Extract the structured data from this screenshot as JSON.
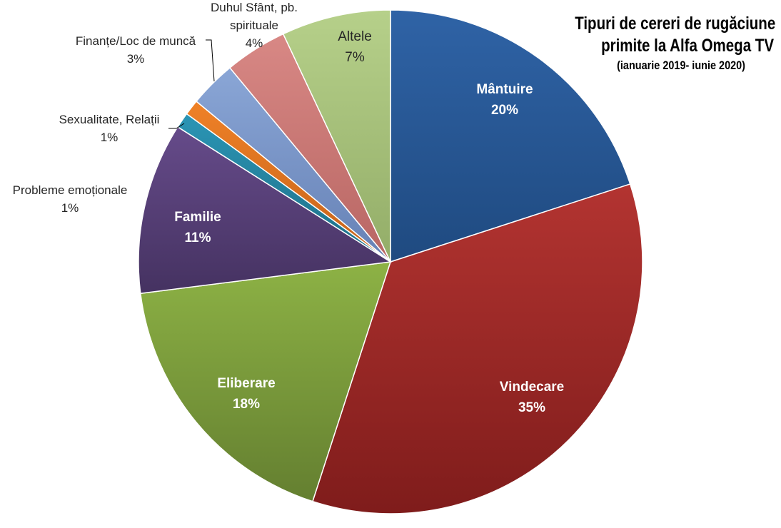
{
  "chart_data": {
    "type": "pie",
    "title_lines": [
      "Tipuri de cereri de rugăciune",
      "primite la Alfa Omega TV"
    ],
    "subtitle": "(ianuarie 2019- iunie 2020)",
    "legend": "none",
    "slices": [
      {
        "label": "Mântuire",
        "value": 20,
        "value_label": "20%",
        "color": "#2f63a6",
        "color_dark": "#1f4a80",
        "label_style": "inside-white"
      },
      {
        "label": "Vindecare",
        "value": 35,
        "value_label": "35%",
        "color": "#b33431",
        "color_dark": "#7f1c1b",
        "label_style": "inside-white"
      },
      {
        "label": "Eliberare",
        "value": 18,
        "value_label": "18%",
        "color": "#8db245",
        "color_dark": "#647f30",
        "label_style": "inside-white"
      },
      {
        "label": "Familie",
        "value": 11,
        "value_label": "11%",
        "color": "#664b8a",
        "color_dark": "#453261",
        "label_style": "inside-white"
      },
      {
        "label": "Probleme emoționale",
        "value": 1,
        "value_label": "1%",
        "color": "#2b95b5",
        "color_dark": "#1d6e86",
        "label_style": "outside"
      },
      {
        "label": "Sexualitate, Relații",
        "value": 1,
        "value_label": "1%",
        "color": "#ef8127",
        "color_dark": "#c4621a",
        "label_style": "outside"
      },
      {
        "label": "Finanțe/Loc de muncă",
        "value": 3,
        "value_label": "3%",
        "color": "#8aa6d6",
        "color_dark": "#6681b5",
        "label_style": "outside"
      },
      {
        "label": "Duhul Sfânt, pb. spirituale",
        "value": 4,
        "value_label": "4%",
        "color": "#d88885",
        "color_dark": "#b86663",
        "label_style": "outside"
      },
      {
        "label": "Altele",
        "value": 7,
        "value_label": "7%",
        "color": "#b6d08a",
        "color_dark": "#93ad68",
        "label_style": "inside-dark"
      }
    ]
  }
}
